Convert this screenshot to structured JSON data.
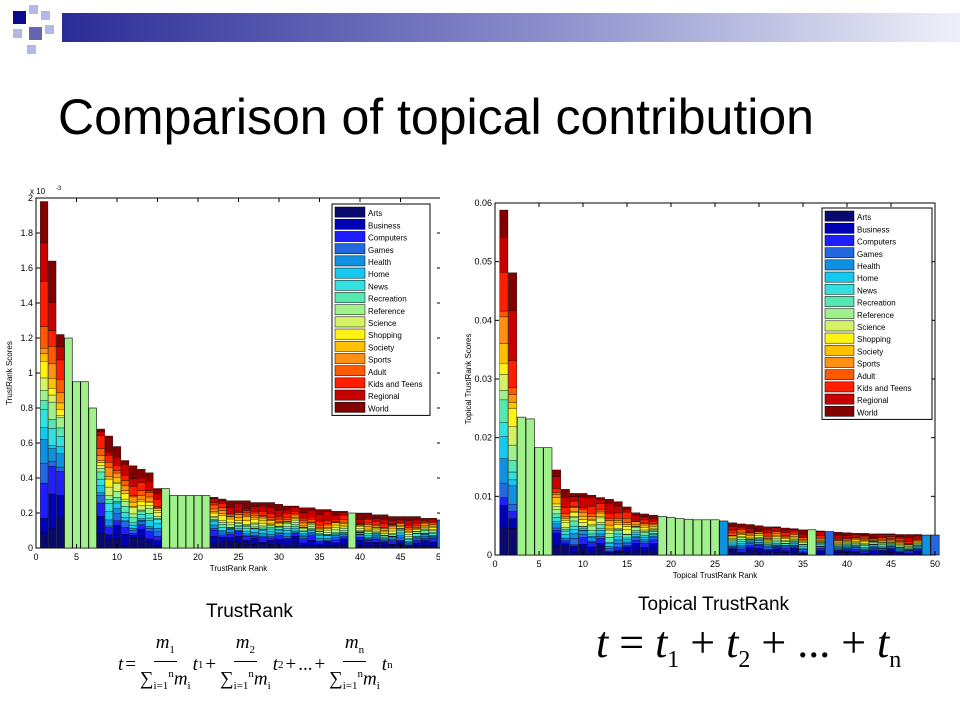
{
  "slide": {
    "title": "Comparison of topical contribution",
    "caption_left": "TrustRank",
    "caption_right": "Topical TrustRank",
    "accent_colors": [
      "#0b0b8c",
      "#b3b8e8",
      "#3a3ca0"
    ]
  },
  "formulas": {
    "left": {
      "lhs": "t",
      "eq": "=",
      "terms": [
        {
          "num": "m",
          "num_sub": "1",
          "t_sub": "1"
        },
        {
          "num": "m",
          "num_sub": "2",
          "t_sub": "2"
        },
        {
          "num": "m",
          "num_sub": "n",
          "t_sub": "n"
        }
      ],
      "plus": "+",
      "ellipsis": "...",
      "den_sigma": "∑",
      "den_sup": "n",
      "den_sub": "i=1",
      "den_var": "m",
      "den_var_sub": "i",
      "t": "t"
    },
    "right": {
      "lhs": "t",
      "eq": "=",
      "t": "t",
      "subs": [
        "1",
        "2",
        "n"
      ],
      "plus": "+",
      "ellipsis": "..."
    }
  },
  "chart_data": [
    {
      "type": "bar",
      "stacked": true,
      "xlabel": "TrustRank Rank",
      "ylabel": "TrustRank Scores",
      "y_multiplier": "x 10",
      "y_exponent": "-3",
      "xlim": [
        0,
        50
      ],
      "ylim": [
        0,
        2
      ],
      "xticks": [
        0,
        5,
        10,
        15,
        20,
        25,
        30,
        35,
        40,
        45,
        50
      ],
      "yticks": [
        0,
        0.2,
        0.4,
        0.6,
        0.8,
        1,
        1.2,
        1.4,
        1.6,
        1.8,
        2
      ],
      "ytick_labels": [
        "0",
        "0.2",
        "0.4",
        "0.6",
        "0.8",
        "1",
        "1.2",
        "1.4",
        "1.6",
        "1.8",
        "2"
      ],
      "legend_position": "top-right",
      "grid": false,
      "totals": [
        1.98,
        1.64,
        1.22,
        1.2,
        0.95,
        0.95,
        0.8,
        0.68,
        0.64,
        0.58,
        0.5,
        0.47,
        0.45,
        0.43,
        0.34,
        0.34,
        0.3,
        0.3,
        0.3,
        0.3,
        0.3,
        0.29,
        0.28,
        0.27,
        0.27,
        0.27,
        0.26,
        0.26,
        0.26,
        0.25,
        0.24,
        0.24,
        0.23,
        0.23,
        0.22,
        0.22,
        0.21,
        0.21,
        0.2,
        0.2,
        0.2,
        0.19,
        0.19,
        0.18,
        0.18,
        0.18,
        0.18,
        0.17,
        0.17,
        0.16
      ]
    },
    {
      "type": "bar",
      "stacked": true,
      "xlabel": "Topical TrustRank Rank",
      "ylabel": "Topical TrustRank Scores",
      "xlim": [
        0,
        50
      ],
      "ylim": [
        0,
        0.06
      ],
      "xticks": [
        0,
        5,
        10,
        15,
        20,
        25,
        30,
        35,
        40,
        45,
        50
      ],
      "yticks": [
        0,
        0.01,
        0.02,
        0.03,
        0.04,
        0.05,
        0.06
      ],
      "ytick_labels": [
        "0",
        "0.01",
        "0.02",
        "0.03",
        "0.04",
        "0.05",
        "0.06"
      ],
      "legend_position": "top-right",
      "grid": false,
      "totals": [
        0.0588,
        0.0481,
        0.0235,
        0.0232,
        0.0183,
        0.0183,
        0.0145,
        0.0112,
        0.0105,
        0.0105,
        0.0102,
        0.0098,
        0.0095,
        0.0091,
        0.0082,
        0.0072,
        0.007,
        0.0068,
        0.0066,
        0.0064,
        0.0062,
        0.0061,
        0.006,
        0.006,
        0.006,
        0.0058,
        0.0055,
        0.0053,
        0.0052,
        0.005,
        0.0048,
        0.0048,
        0.0046,
        0.0045,
        0.0043,
        0.0043,
        0.0041,
        0.004,
        0.0039,
        0.0038,
        0.0037,
        0.0037,
        0.0036,
        0.0036,
        0.0036,
        0.0035,
        0.0035,
        0.0035,
        0.0034,
        0.0034
      ]
    }
  ],
  "series": [
    {
      "name": "Arts",
      "color": "#0a0a6e"
    },
    {
      "name": "Business",
      "color": "#0000b4"
    },
    {
      "name": "Computers",
      "color": "#1e1eff"
    },
    {
      "name": "Games",
      "color": "#2468e0"
    },
    {
      "name": "Health",
      "color": "#0f90e0"
    },
    {
      "name": "Home",
      "color": "#14c8f0"
    },
    {
      "name": "News",
      "color": "#33e0e0"
    },
    {
      "name": "Recreation",
      "color": "#55e8b0"
    },
    {
      "name": "Reference",
      "color": "#a0f08c"
    },
    {
      "name": "Science",
      "color": "#d4f264"
    },
    {
      "name": "Shopping",
      "color": "#fff214"
    },
    {
      "name": "Society",
      "color": "#ffc000"
    },
    {
      "name": "Sports",
      "color": "#ff9014"
    },
    {
      "name": "Adult",
      "color": "#ff5a00"
    },
    {
      "name": "Kids and Teens",
      "color": "#ff1e00"
    },
    {
      "name": "Regional",
      "color": "#c80000"
    },
    {
      "name": "World",
      "color": "#820000"
    }
  ]
}
